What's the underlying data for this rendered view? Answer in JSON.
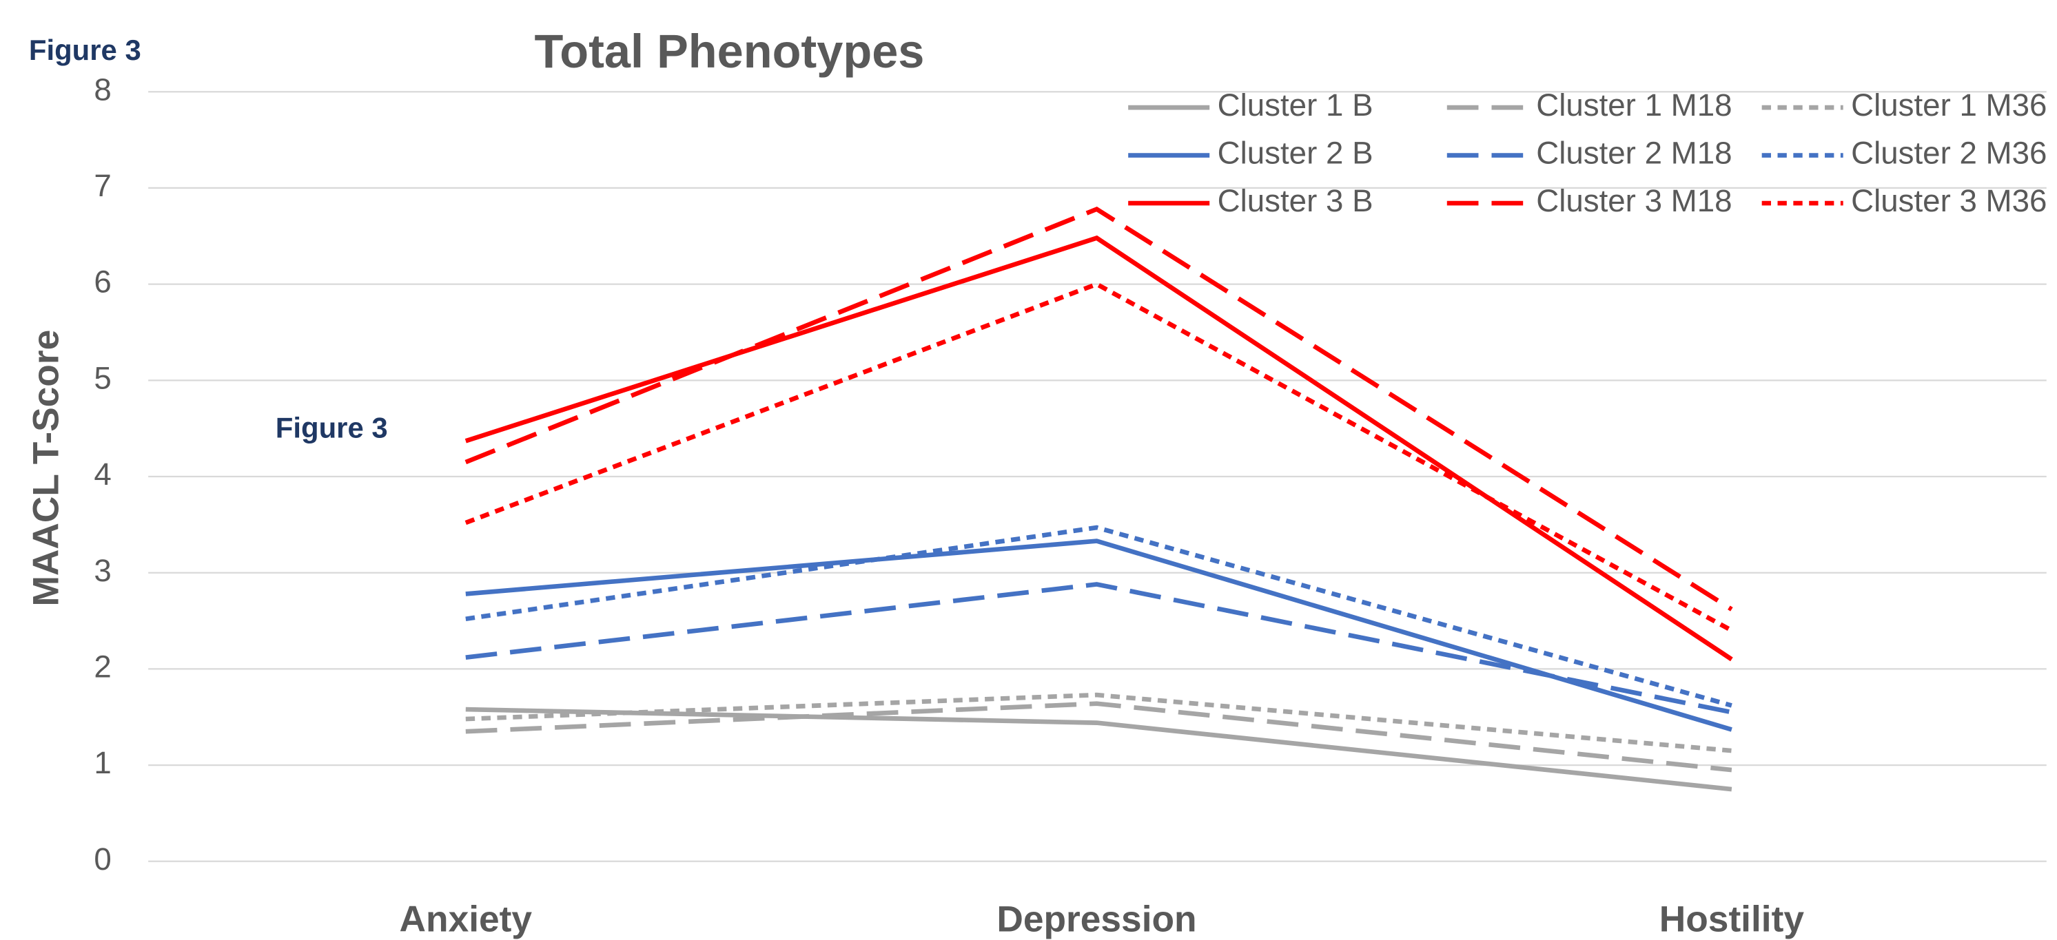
{
  "chart_data": {
    "type": "line",
    "title": "Total Phenotypes",
    "figure_labels": [
      "Figure 3",
      "Figure 3"
    ],
    "ylabel": "MAACL T-Score",
    "categories": [
      "Anxiety",
      "Depression",
      "Hostility"
    ],
    "ylim": [
      0,
      8
    ],
    "yticks": [
      0,
      1,
      2,
      3,
      4,
      5,
      6,
      7,
      8
    ],
    "grid": true,
    "legend": "top-right",
    "series": [
      {
        "name": "Cluster 1 B",
        "color": "#a5a5a5",
        "dash": "solid",
        "values": [
          1.58,
          1.44,
          0.75
        ]
      },
      {
        "name": "Cluster 1 M18",
        "color": "#a5a5a5",
        "dash": "dash",
        "values": [
          1.35,
          1.64,
          0.95
        ]
      },
      {
        "name": "Cluster 1 M36",
        "color": "#a5a5a5",
        "dash": "dot",
        "values": [
          1.48,
          1.73,
          1.15
        ]
      },
      {
        "name": "Cluster 2 B",
        "color": "#4472c4",
        "dash": "solid",
        "values": [
          2.78,
          3.33,
          1.37
        ]
      },
      {
        "name": "Cluster 2 M18",
        "color": "#4472c4",
        "dash": "dash",
        "values": [
          2.12,
          2.88,
          1.55
        ]
      },
      {
        "name": "Cluster 2 M36",
        "color": "#4472c4",
        "dash": "dot",
        "values": [
          2.52,
          3.47,
          1.62
        ]
      },
      {
        "name": "Cluster 3 B",
        "color": "#ff0000",
        "dash": "solid",
        "values": [
          4.37,
          6.48,
          2.1
        ]
      },
      {
        "name": "Cluster 3 M18",
        "color": "#ff0000",
        "dash": "dash",
        "values": [
          4.15,
          6.78,
          2.62
        ]
      },
      {
        "name": "Cluster 3 M36",
        "color": "#ff0000",
        "dash": "dot",
        "values": [
          3.52,
          6.0,
          2.4
        ]
      }
    ]
  }
}
